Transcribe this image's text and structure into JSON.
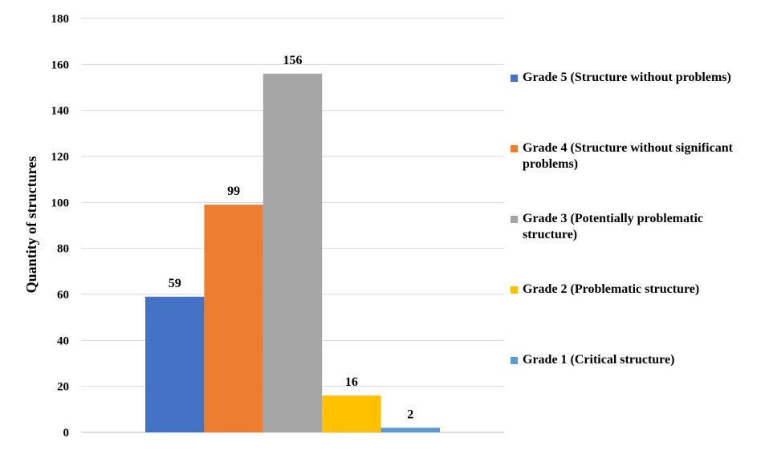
{
  "chart_data": {
    "type": "bar",
    "title": "",
    "xlabel": "",
    "ylabel": "Quantity of structures",
    "ylim": [
      0,
      180
    ],
    "yticks": [
      0,
      20,
      40,
      60,
      80,
      100,
      120,
      140,
      160,
      180
    ],
    "grid": true,
    "legend_position": "right",
    "series": [
      {
        "name": "Grade 5 (Structure without problems)",
        "value": 59,
        "color": "#4472C4"
      },
      {
        "name": "Grade 4 (Structure without significant problems)",
        "value": 99,
        "color": "#ED7D31"
      },
      {
        "name": "Grade 3 (Potentially problematic structure)",
        "value": 156,
        "color": "#A5A5A5"
      },
      {
        "name": "Grade 2 (Problematic structure)",
        "value": 16,
        "color": "#FFC000"
      },
      {
        "name": "Grade 1 (Critical structure)",
        "value": 2,
        "color": "#5B9BD5"
      }
    ]
  }
}
